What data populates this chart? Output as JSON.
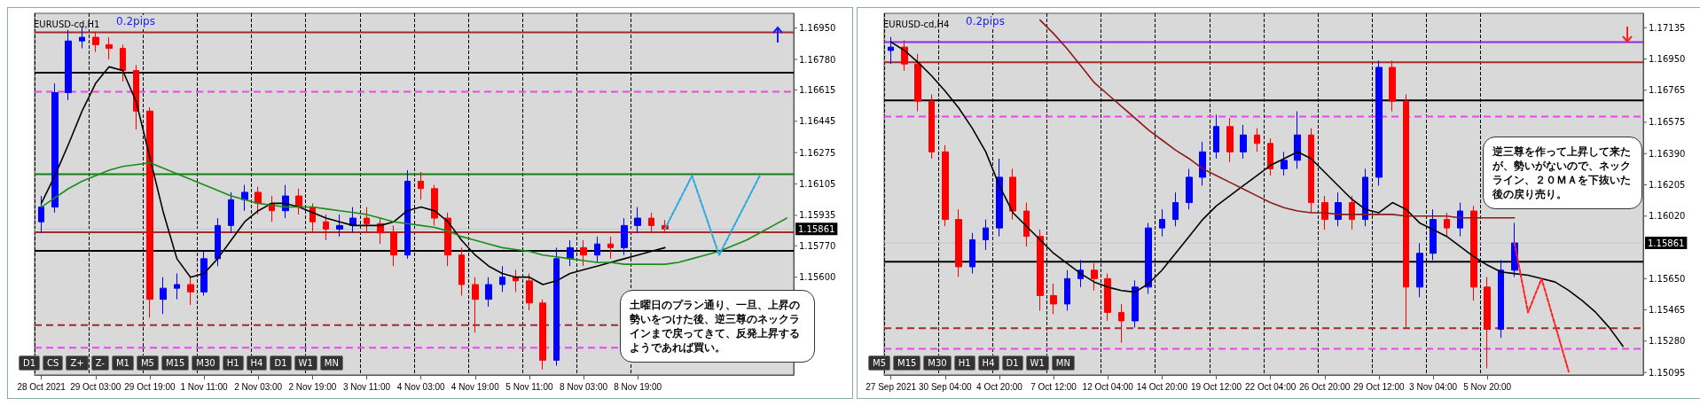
{
  "chart_data": [
    {
      "type": "candlestick",
      "title": "EURUSD-cd,H1",
      "annotations": [
        "0.2pips",
        "土曜日のプラン通り、一旦、上昇の勢いをつけた後、逆三尊のネックラインまで戻ってきて、反発上昇するようであれば買い。",
        "D1",
        "CS",
        "Z+",
        "Z-",
        "M1",
        "M5",
        "M15",
        "M30",
        "H1",
        "H4",
        "D1",
        "W1",
        "MN"
      ],
      "categories": [
        "28 Oct 2021",
        null,
        null,
        null,
        "29 Oct 03:00",
        null,
        null,
        null,
        "29 Oct 19:00",
        null,
        null,
        null,
        "1 Nov 11:00",
        null,
        null,
        null,
        "2 Nov 03:00",
        null,
        null,
        null,
        "2 Nov 19:00",
        null,
        null,
        null,
        "3 Nov 11:00",
        null,
        null,
        null,
        "4 Nov 03:00",
        null,
        null,
        null,
        "4 Nov 19:00",
        null,
        null,
        null,
        "5 Nov 11:00",
        null,
        null,
        null,
        "8 Nov 03:00",
        null,
        null,
        null,
        "8 Nov 19:00",
        null,
        null,
        null,
        null,
        null,
        null,
        null,
        null,
        null,
        null,
        null
      ],
      "ohlc": [
        [
          1.159,
          1.1604,
          1.1584,
          1.1598
        ],
        [
          1.1598,
          1.1665,
          1.1595,
          1.166
        ],
        [
          1.166,
          1.1694,
          1.1656,
          1.1688
        ],
        [
          1.1688,
          1.1696,
          1.1684,
          1.169
        ],
        [
          1.169,
          1.1693,
          1.1682,
          1.1686
        ],
        [
          1.1686,
          1.169,
          1.1678,
          1.1684
        ],
        [
          1.1684,
          1.1686,
          1.1666,
          1.1672
        ],
        [
          1.1672,
          1.1675,
          1.164,
          1.165
        ],
        [
          1.165,
          1.1652,
          1.1538,
          1.1548
        ],
        [
          1.1548,
          1.156,
          1.154,
          1.1554
        ],
        [
          1.1554,
          1.1562,
          1.1548,
          1.1556
        ],
        [
          1.1556,
          1.156,
          1.1545,
          1.1552
        ],
        [
          1.1552,
          1.1574,
          1.155,
          1.157
        ],
        [
          1.157,
          1.1592,
          1.1566,
          1.1588
        ],
        [
          1.1588,
          1.1606,
          1.1584,
          1.1602
        ],
        [
          1.1602,
          1.161,
          1.1596,
          1.1606
        ],
        [
          1.1606,
          1.1609,
          1.1594,
          1.16
        ],
        [
          1.16,
          1.1604,
          1.159,
          1.1596
        ],
        [
          1.1596,
          1.161,
          1.1592,
          1.1604
        ],
        [
          1.1604,
          1.1608,
          1.1594,
          1.1598
        ],
        [
          1.1598,
          1.16,
          1.1584,
          1.159
        ],
        [
          1.159,
          1.1594,
          1.158,
          1.1586
        ],
        [
          1.1586,
          1.1594,
          1.1582,
          1.1588
        ],
        [
          1.1588,
          1.1598,
          1.1584,
          1.1592
        ],
        [
          1.1592,
          1.1598,
          1.1584,
          1.1589
        ],
        [
          1.1589,
          1.1592,
          1.1578,
          1.1584
        ],
        [
          1.1584,
          1.1588,
          1.1566,
          1.1572
        ],
        [
          1.1572,
          1.1618,
          1.157,
          1.1612
        ],
        [
          1.1612,
          1.1617,
          1.1602,
          1.1608
        ],
        [
          1.1608,
          1.161,
          1.1588,
          1.1592
        ],
        [
          1.1592,
          1.1595,
          1.1566,
          1.1572
        ],
        [
          1.1572,
          1.1576,
          1.155,
          1.1556
        ],
        [
          1.1556,
          1.156,
          1.153,
          1.1548
        ],
        [
          1.1548,
          1.156,
          1.1544,
          1.1556
        ],
        [
          1.1556,
          1.1566,
          1.1552,
          1.156
        ],
        [
          1.156,
          1.1564,
          1.1552,
          1.1558
        ],
        [
          1.1558,
          1.1562,
          1.1542,
          1.1546
        ],
        [
          1.1546,
          1.1548,
          1.151,
          1.1515
        ],
        [
          1.1515,
          1.1576,
          1.1512,
          1.157
        ],
        [
          1.157,
          1.158,
          1.1566,
          1.1576
        ],
        [
          1.1576,
          1.158,
          1.1566,
          1.1572
        ],
        [
          1.1572,
          1.1582,
          1.1568,
          1.1578
        ],
        [
          1.1578,
          1.1582,
          1.157,
          1.1576
        ],
        [
          1.1576,
          1.1592,
          1.1572,
          1.1588
        ],
        [
          1.1588,
          1.1598,
          1.1584,
          1.1592
        ],
        [
          1.1592,
          1.1595,
          1.1584,
          1.1588
        ],
        [
          1.1588,
          1.1591,
          1.1584,
          1.15861
        ],
        null,
        null,
        null,
        null,
        null,
        null,
        null,
        null,
        null
      ],
      "series": [
        {
          "type": "line",
          "color": "#000000",
          "values": [
            1.16,
            1.1615,
            1.1632,
            1.165,
            1.1665,
            1.1674,
            1.1672,
            1.1655,
            1.1625,
            1.1595,
            1.157,
            1.156,
            1.1562,
            1.157,
            1.158,
            1.159,
            1.1596,
            1.16,
            1.16,
            1.1598,
            1.1595,
            1.1592,
            1.159,
            1.1588,
            1.1588,
            1.1588,
            1.159,
            1.1596,
            1.1598,
            1.1596,
            1.159,
            1.158,
            1.1572,
            1.1566,
            1.1562,
            1.156,
            1.156,
            1.1556,
            1.1558,
            1.1562,
            1.1564,
            1.1566,
            1.1568,
            1.157,
            1.1572,
            1.1574,
            1.1576,
            null,
            null,
            null,
            null,
            null,
            null,
            null,
            null,
            null
          ]
        },
        {
          "type": "line",
          "color": "#1a8c1a",
          "values": [
            1.1598,
            1.1603,
            1.1608,
            1.1612,
            1.1615,
            1.1618,
            1.162,
            1.1621,
            1.1622,
            1.1619,
            1.1616,
            1.1613,
            1.161,
            1.1607,
            1.1604,
            1.1602,
            1.16,
            1.1599,
            1.1598,
            1.1598,
            1.1598,
            1.1597,
            1.1596,
            1.1595,
            1.1594,
            1.1592,
            1.159,
            1.1589,
            1.1588,
            1.1587,
            1.1585,
            1.1582,
            1.158,
            1.1578,
            1.1576,
            1.1575,
            1.1574,
            1.1572,
            1.1571,
            1.157,
            1.1569,
            1.1568,
            1.1568,
            1.1567,
            1.1567,
            1.1567,
            1.1567,
            1.1568,
            1.157,
            1.1572,
            1.1574,
            1.1577,
            1.158,
            1.1584,
            1.1588,
            1.1592
          ]
        },
        {
          "type": "line",
          "color": "#29a8e0",
          "line_style": "dashed",
          "values": [
            null,
            null,
            null,
            null,
            null,
            null,
            null,
            null,
            null,
            null,
            null,
            null,
            null,
            null,
            null,
            null,
            null,
            null,
            null,
            null,
            null,
            null,
            null,
            null,
            null,
            null,
            null,
            null,
            null,
            null,
            null,
            null,
            null,
            null,
            null,
            null,
            null,
            null,
            null,
            null,
            null,
            null,
            null,
            null,
            null,
            null,
            1.15861,
            null,
            1.1615,
            null,
            1.1572,
            null,
            null,
            1.1615,
            null,
            null
          ]
        }
      ],
      "ref_lines": [
        {
          "axis": "y",
          "value": 1.16927,
          "color": "#a52a2a",
          "line_style": "solid"
        },
        {
          "axis": "y",
          "value": 1.16708,
          "color": "#000000",
          "line_style": "solid"
        },
        {
          "axis": "y",
          "value": 1.16605,
          "color": "#ee44ee",
          "line_style": "dashed"
        },
        {
          "axis": "y",
          "value": 1.16158,
          "color": "#138013",
          "line_style": "solid"
        },
        {
          "axis": "y",
          "value": 1.15861,
          "label": "1.15861",
          "color": "#c8c8c8",
          "line_style": "solid"
        },
        {
          "axis": "y",
          "value": 1.15844,
          "color": "#a52a2a",
          "line_style": "solid"
        },
        {
          "axis": "y",
          "value": 1.15742,
          "color": "#000000",
          "line_style": "solid"
        },
        {
          "axis": "y",
          "value": 1.1534,
          "color": "#a52a2a",
          "line_style": "dashed"
        },
        {
          "axis": "y",
          "value": 1.15218,
          "color": "#ee44ee",
          "line_style": "dashed"
        }
      ],
      "ylim": [
        1.1507,
        1.1703
      ],
      "yticks": [
        {
          "value": 1.1695,
          "label": "1.16950"
        },
        {
          "value": 1.1678,
          "label": "1.16780"
        },
        {
          "value": 1.16615,
          "label": "1.16615"
        },
        {
          "value": 1.16445,
          "label": "1.16445"
        },
        {
          "value": 1.16275,
          "label": "1.16275"
        },
        {
          "value": 1.16105,
          "label": "1.16105"
        },
        {
          "value": 1.15935,
          "label": "1.15935"
        },
        {
          "value": 1.1577,
          "label": "1.15770"
        },
        {
          "value": 1.156,
          "label": "1.15600"
        }
      ],
      "grid": "x"
    },
    {
      "type": "candlestick",
      "title": "EURUSD-cd,H4",
      "annotations": [
        "0.2pips",
        "逆三尊を作って上昇して来たが、勢いがないので、ネックライン、２０ＭＡを下抜いた後の戻り売り。",
        "M5",
        "M15",
        "M30",
        "H1",
        "H4",
        "D1",
        "W1",
        "MN"
      ],
      "categories": [
        "27 Sep 2021",
        null,
        null,
        null,
        "30 Sep 04:00",
        null,
        null,
        null,
        "4 Oct 20:00",
        null,
        null,
        null,
        "7 Oct 12:00",
        null,
        null,
        null,
        "12 Oct 04:00",
        null,
        null,
        null,
        "14 Oct 20:00",
        null,
        null,
        null,
        "19 Oct 12:00",
        null,
        null,
        null,
        "22 Oct 04:00",
        null,
        null,
        null,
        "26 Oct 20:00",
        null,
        null,
        null,
        "29 Oct 12:00",
        null,
        null,
        null,
        "3 Nov 04:00",
        null,
        null,
        null,
        "5 Nov 20:00",
        null,
        null,
        null,
        null,
        null,
        null,
        null,
        null,
        null,
        null,
        null
      ],
      "ohlc": [
        [
          1.17,
          1.1708,
          1.1692,
          1.1702
        ],
        [
          1.1702,
          1.1706,
          1.1688,
          1.1692
        ],
        [
          1.1692,
          1.1698,
          1.1664,
          1.167
        ],
        [
          1.167,
          1.1674,
          1.1636,
          1.164
        ],
        [
          1.164,
          1.1644,
          1.1596,
          1.16
        ],
        [
          1.16,
          1.1606,
          1.1566,
          1.1572
        ],
        [
          1.1572,
          1.1592,
          1.1568,
          1.1588
        ],
        [
          1.1588,
          1.16,
          1.1582,
          1.1595
        ],
        [
          1.1595,
          1.1636,
          1.159,
          1.1625
        ],
        [
          1.1625,
          1.163,
          1.16,
          1.1605
        ],
        [
          1.1605,
          1.161,
          1.1584,
          1.159
        ],
        [
          1.159,
          1.1594,
          1.1546,
          1.1555
        ],
        [
          1.1555,
          1.1562,
          1.1544,
          1.155
        ],
        [
          1.155,
          1.157,
          1.1546,
          1.1565
        ],
        [
          1.1565,
          1.1576,
          1.156,
          1.157
        ],
        [
          1.157,
          1.1574,
          1.1558,
          1.1565
        ],
        [
          1.1565,
          1.1568,
          1.154,
          1.1545
        ],
        [
          1.1545,
          1.155,
          1.1527,
          1.154
        ],
        [
          1.154,
          1.1564,
          1.1536,
          1.156
        ],
        [
          1.156,
          1.1598,
          1.1556,
          1.1595
        ],
        [
          1.1595,
          1.1606,
          1.159,
          1.16
        ],
        [
          1.16,
          1.1616,
          1.1596,
          1.161
        ],
        [
          1.161,
          1.163,
          1.1606,
          1.1625
        ],
        [
          1.1625,
          1.1646,
          1.162,
          1.164
        ],
        [
          1.164,
          1.1662,
          1.1636,
          1.1655
        ],
        [
          1.1655,
          1.166,
          1.1634,
          1.164
        ],
        [
          1.164,
          1.1656,
          1.1636,
          1.165
        ],
        [
          1.165,
          1.1654,
          1.164,
          1.1645
        ],
        [
          1.1645,
          1.1648,
          1.1626,
          1.163
        ],
        [
          1.163,
          1.164,
          1.1626,
          1.1635
        ],
        [
          1.1635,
          1.1664,
          1.163,
          1.165
        ],
        [
          1.165,
          1.1654,
          1.1604,
          1.161
        ],
        [
          1.161,
          1.1614,
          1.1594,
          1.16
        ],
        [
          1.16,
          1.1616,
          1.1596,
          1.161
        ],
        [
          1.161,
          1.1614,
          1.1594,
          1.16
        ],
        [
          1.16,
          1.163,
          1.1596,
          1.1625
        ],
        [
          1.1625,
          1.1694,
          1.162,
          1.169
        ],
        [
          1.169,
          1.1694,
          1.1664,
          1.167
        ],
        [
          1.167,
          1.1674,
          1.1536,
          1.156
        ],
        [
          1.156,
          1.1586,
          1.1554,
          1.158
        ],
        [
          1.158,
          1.1606,
          1.1576,
          1.16
        ],
        [
          1.16,
          1.1604,
          1.159,
          1.1595
        ],
        [
          1.1595,
          1.161,
          1.159,
          1.1605
        ],
        [
          1.1605,
          1.1608,
          1.1552,
          1.156
        ],
        [
          1.156,
          1.1566,
          1.1512,
          1.1535
        ],
        [
          1.1535,
          1.1576,
          1.153,
          1.157
        ],
        [
          1.157,
          1.1598,
          1.1566,
          1.15861
        ],
        null,
        null,
        null,
        null,
        null,
        null,
        null,
        null,
        null
      ],
      "series": [
        {
          "type": "line",
          "color": "#000000",
          "values": [
            1.1705,
            1.17,
            1.1693,
            1.1685,
            1.1676,
            1.1666,
            1.1654,
            1.164,
            1.162,
            1.1604,
            1.1596,
            1.1588,
            1.158,
            1.1574,
            1.1568,
            1.1563,
            1.156,
            1.1558,
            1.1557,
            1.1562,
            1.157,
            1.158,
            1.159,
            1.16,
            1.1608,
            1.1614,
            1.162,
            1.1626,
            1.1632,
            1.1636,
            1.164,
            1.1636,
            1.1628,
            1.162,
            1.1612,
            1.1606,
            1.1604,
            1.161,
            1.1606,
            1.1598,
            1.1594,
            1.159,
            1.1584,
            1.1578,
            1.1573,
            1.1569,
            1.1568,
            1.1567,
            1.1565,
            1.1563,
            1.1558,
            1.1552,
            1.1545,
            1.1536,
            1.1525,
            null
          ]
        },
        {
          "type": "line",
          "color": "#8b1a1a",
          "values": [
            null,
            null,
            null,
            null,
            null,
            null,
            null,
            null,
            null,
            null,
            null,
            1.1718,
            1.171,
            1.1701,
            1.1691,
            1.1681,
            1.1674,
            1.1667,
            1.166,
            1.1653,
            1.1647,
            1.1641,
            1.1636,
            1.163,
            1.1626,
            1.1622,
            1.1618,
            1.1614,
            1.161,
            1.1607,
            1.1605,
            1.1604,
            1.1604,
            1.1603,
            1.1603,
            1.1603,
            1.1603,
            1.1603,
            1.1602,
            1.1602,
            1.1602,
            1.1602,
            1.1601,
            1.1601,
            1.1601,
            1.1601,
            1.1601,
            null,
            null,
            null,
            null,
            null,
            null,
            null,
            null,
            null
          ]
        },
        {
          "type": "line",
          "color": "#ff2020",
          "line_style": "dashed",
          "values": [
            null,
            null,
            null,
            null,
            null,
            null,
            null,
            null,
            null,
            null,
            null,
            null,
            null,
            null,
            null,
            null,
            null,
            null,
            null,
            null,
            null,
            null,
            null,
            null,
            null,
            null,
            null,
            null,
            null,
            null,
            null,
            null,
            null,
            null,
            null,
            null,
            null,
            null,
            null,
            null,
            null,
            null,
            null,
            null,
            null,
            null,
            1.15861,
            1.1545,
            1.1565,
            null,
            1.151,
            null,
            null,
            null,
            null,
            null
          ]
        }
      ],
      "ref_lines": [
        {
          "axis": "y",
          "value": 1.1705,
          "color": "#8a2be2",
          "line_style": "solid"
        },
        {
          "axis": "y",
          "value": 1.1693,
          "color": "#a52a2a",
          "line_style": "solid"
        },
        {
          "axis": "y",
          "value": 1.16705,
          "color": "#000000",
          "line_style": "solid"
        },
        {
          "axis": "y",
          "value": 1.16609,
          "color": "#ee44ee",
          "line_style": "dashed"
        },
        {
          "axis": "y",
          "value": 1.15861,
          "label": "1.15861",
          "color": "#c8c8c8",
          "line_style": "solid"
        },
        {
          "axis": "y",
          "value": 1.1575,
          "color": "#000000",
          "line_style": "solid"
        },
        {
          "axis": "y",
          "value": 1.15357,
          "color": "#a52a2a",
          "line_style": "dashed"
        },
        {
          "axis": "y",
          "value": 1.15235,
          "color": "#ee44ee",
          "line_style": "dashed"
        }
      ],
      "ylim": [
        1.1508,
        1.1722
      ],
      "yticks": [
        {
          "value": 1.17135,
          "label": "1.17135"
        },
        {
          "value": 1.1695,
          "label": "1.16950"
        },
        {
          "value": 1.16765,
          "label": "1.16765"
        },
        {
          "value": 1.16575,
          "label": "1.16575"
        },
        {
          "value": 1.1639,
          "label": "1.16390"
        },
        {
          "value": 1.16205,
          "label": "1.16205"
        },
        {
          "value": 1.1602,
          "label": "1.16020"
        },
        {
          "value": 1.1565,
          "label": "1.15650"
        },
        {
          "value": 1.15465,
          "label": "1.15465"
        },
        {
          "value": 1.1528,
          "label": "1.15280"
        },
        {
          "value": 1.15095,
          "label": "1.15095"
        }
      ],
      "grid": "x"
    }
  ]
}
